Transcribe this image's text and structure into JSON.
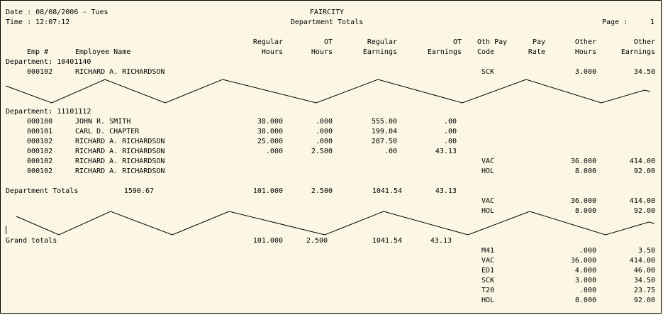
{
  "header": {
    "date_label": "Date : 08/08/2006 - Tues",
    "time_label": "Time : 12:07:12",
    "company": "FAIRCITY",
    "report_title": "Department Totals",
    "page_label": "Page :",
    "page_number": "1"
  },
  "columns": {
    "emp_num": "Emp #",
    "employee_name": "Employee Name",
    "regular_hours_1": "Regular",
    "regular_hours_2": "Hours",
    "ot_hours_1": "OT",
    "ot_hours_2": "Hours",
    "regular_earnings_1": "Regular",
    "regular_earnings_2": "Earnings",
    "ot_earnings_1": "OT",
    "ot_earnings_2": "Earnings",
    "oth_pay_code_1": "Oth Pay",
    "oth_pay_code_2": "Code",
    "pay_rate_1": "Pay",
    "pay_rate_2": "Rate",
    "other_hours_1": "Other",
    "other_hours_2": "Hours",
    "other_earnings_1": "Other",
    "other_earnings_2": "Earnings"
  },
  "dept1": {
    "label": "Department: 10401140",
    "rows": [
      {
        "emp": "000102",
        "name": "RICHARD A. RICHARDSON",
        "code": "SCK",
        "oth_hours": "3.000",
        "oth_earn": "34.50"
      }
    ]
  },
  "dept2": {
    "label": "Department: 11101112",
    "rows": [
      {
        "emp": "000100",
        "name": "JOHN R. SMITH",
        "reg_hours": "38.000",
        "ot_hours": ".000",
        "reg_earn": "555.00",
        "ot_earn": ".00"
      },
      {
        "emp": "000101",
        "name": "CARL D. CHAPTER",
        "reg_hours": "38.000",
        "ot_hours": ".000",
        "reg_earn": "199.04",
        "ot_earn": ".00"
      },
      {
        "emp": "000102",
        "name": "RICHARD A. RICHARDSON",
        "reg_hours": "25.000",
        "ot_hours": ".000",
        "reg_earn": "287.50",
        "ot_earn": ".00"
      },
      {
        "emp": "000102",
        "name": "RICHARD A. RICHARDSON",
        "reg_hours": ".000",
        "ot_hours": "2.500",
        "reg_earn": ".00",
        "ot_earn": "43.13"
      },
      {
        "emp": "000102",
        "name": "RICHARD A. RICHARDSON",
        "code": "VAC",
        "oth_hours": "36.000",
        "oth_earn": "414.00"
      },
      {
        "emp": "000102",
        "name": "RICHARD A. RICHARDSON",
        "code": "HOL",
        "oth_hours": "8.000",
        "oth_earn": "92.00"
      }
    ],
    "totals": {
      "label": "Department Totals",
      "amount": "1590.67",
      "reg_hours": "101.000",
      "ot_hours": "2.500",
      "reg_earn": "1041.54",
      "ot_earn": "43.13",
      "other": [
        {
          "code": "VAC",
          "oth_hours": "36.000",
          "oth_earn": "414.00"
        },
        {
          "code": "HOL",
          "oth_hours": "8.000",
          "oth_earn": "92.00"
        }
      ]
    }
  },
  "grand": {
    "label": "Grand totals",
    "reg_hours": "101.000",
    "ot_hours": "2.500",
    "reg_earn": "1041.54",
    "ot_earn": "43.13",
    "other": [
      {
        "code": "M41",
        "oth_hours": ".000",
        "oth_earn": "3.50"
      },
      {
        "code": "VAC",
        "oth_hours": "36.000",
        "oth_earn": "414.00"
      },
      {
        "code": "ED1",
        "oth_hours": "4.000",
        "oth_earn": "46.00"
      },
      {
        "code": "SCK",
        "oth_hours": "3.000",
        "oth_earn": "34.50"
      },
      {
        "code": "T20",
        "oth_hours": ".000",
        "oth_earn": "23.75"
      },
      {
        "code": "HOL",
        "oth_hours": "8.000",
        "oth_earn": "92.00"
      }
    ]
  }
}
